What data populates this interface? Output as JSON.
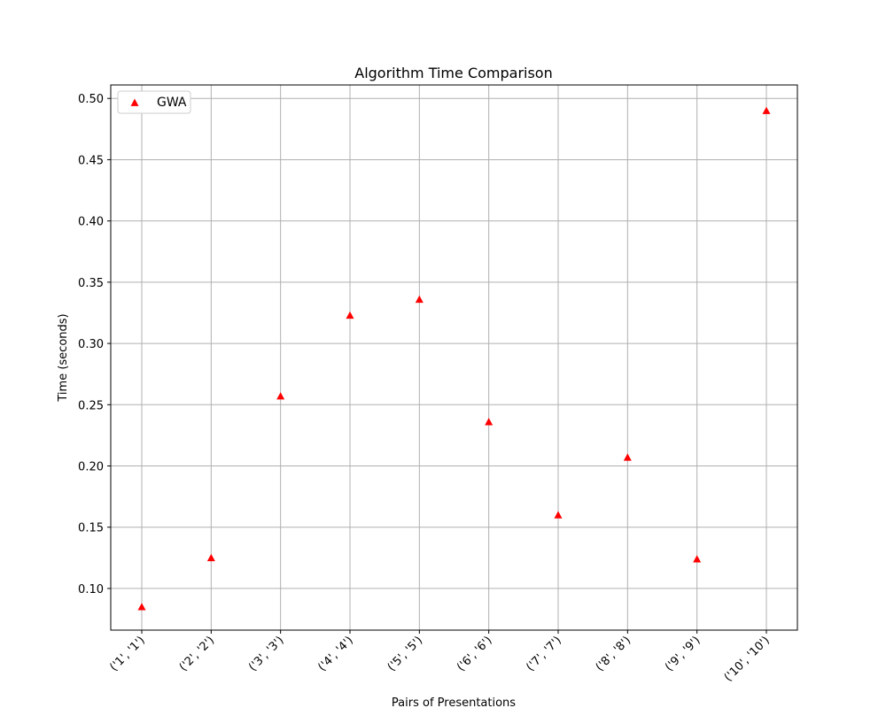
{
  "chart_data": {
    "type": "scatter",
    "title": "Algorithm Time Comparison",
    "xlabel": "Pairs of Presentations",
    "ylabel": "Time (seconds)",
    "categories": [
      "('1', '1')",
      "('2', '2')",
      "('3', '3')",
      "('4', '4')",
      "('5', '5')",
      "('6', '6')",
      "('7', '7')",
      "('8', '8')",
      "('9', '9')",
      "('10', '10')"
    ],
    "series": [
      {
        "name": "GWA",
        "color": "#ff0000",
        "marker": "triangle-up",
        "values": [
          0.085,
          0.125,
          0.257,
          0.323,
          0.336,
          0.236,
          0.16,
          0.207,
          0.124,
          0.49
        ]
      }
    ],
    "ylim": [
      0.066,
      0.511
    ],
    "yticks": [
      "0.10",
      "0.15",
      "0.20",
      "0.25",
      "0.30",
      "0.35",
      "0.40",
      "0.45",
      "0.50"
    ],
    "grid": true,
    "legend_position": "top-left"
  }
}
